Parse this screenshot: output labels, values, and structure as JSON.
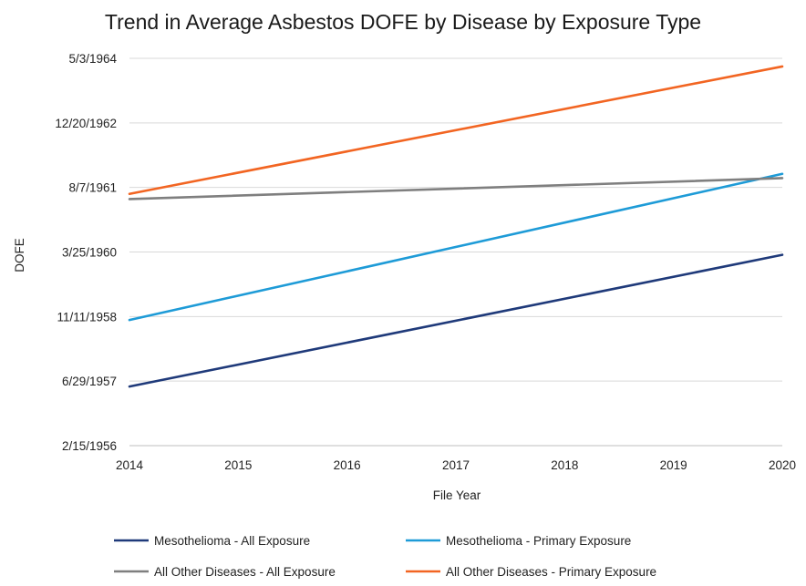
{
  "chart_data": {
    "type": "line",
    "title": "Trend in Average Asbestos DOFE by Disease by Exposure Type",
    "xlabel": "File Year",
    "ylabel": "DOFE",
    "x": [
      2014,
      2015,
      2016,
      2017,
      2018,
      2019,
      2020
    ],
    "xlim": [
      2014,
      2020
    ],
    "y_axis": {
      "scale": "date",
      "min": "2/15/1956",
      "max": "5/3/1964",
      "ticks": [
        "2/15/1956",
        "6/29/1957",
        "11/11/1958",
        "3/25/1960",
        "8/7/1961",
        "12/20/1962",
        "5/3/1964"
      ]
    },
    "grid": "horizontal",
    "legend_position": "bottom",
    "series": [
      {
        "name": "Mesothelioma - All Exposure",
        "color": "#1f3a7a",
        "points": [
          {
            "x": 2014,
            "y": "5/18/1957"
          },
          {
            "x": 2020,
            "y": "3/3/1960"
          }
        ]
      },
      {
        "name": "Mesothelioma - Primary Exposure",
        "color": "#1e9bd7",
        "points": [
          {
            "x": 2014,
            "y": "10/15/1958"
          },
          {
            "x": 2020,
            "y": "11/20/1961"
          }
        ]
      },
      {
        "name": "All Other Diseases - All Exposure",
        "color": "#7f7f7f",
        "points": [
          {
            "x": 2014,
            "y": "5/9/1961"
          },
          {
            "x": 2020,
            "y": "10/18/1961"
          }
        ]
      },
      {
        "name": "All Other Diseases - Primary Exposure",
        "color": "#f26522",
        "points": [
          {
            "x": 2014,
            "y": "6/18/1961"
          },
          {
            "x": 2020,
            "y": "3/1/1964"
          }
        ]
      }
    ]
  }
}
